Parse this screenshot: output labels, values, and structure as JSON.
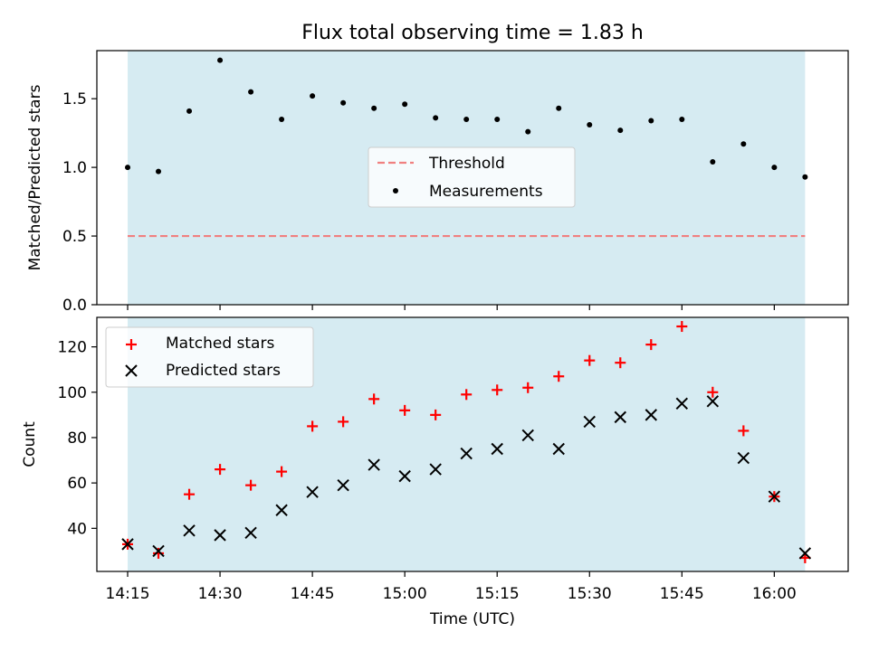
{
  "chart_data": [
    {
      "type": "scatter",
      "title": "Flux total observing time = 1.83 h",
      "xlabel": "",
      "ylabel": "Matched/Predicted stars",
      "ylim": [
        0,
        1.85
      ],
      "yticks": [
        0.0,
        0.5,
        1.0,
        1.5
      ],
      "ytick_labels": [
        "0.0",
        "0.5",
        "1.0",
        "1.5"
      ],
      "grid": false,
      "legend_position": "center",
      "x": [
        "14:15",
        "14:20",
        "14:25",
        "14:30",
        "14:35",
        "14:40",
        "14:45",
        "14:50",
        "14:55",
        "15:00",
        "15:05",
        "15:10",
        "15:15",
        "15:20",
        "15:25",
        "15:30",
        "15:35",
        "15:40",
        "15:45",
        "15:50",
        "15:55",
        "16:00",
        "16:05"
      ],
      "series": [
        {
          "name": "Threshold",
          "style": "dashed-line",
          "color": "#f08080",
          "values": [
            0.5,
            0.5
          ]
        },
        {
          "name": "Measurements",
          "style": "dot",
          "color": "#000000",
          "values": [
            1.0,
            0.97,
            1.41,
            1.78,
            1.55,
            1.35,
            1.52,
            1.47,
            1.43,
            1.46,
            1.36,
            1.35,
            1.35,
            1.26,
            1.43,
            1.31,
            1.27,
            1.34,
            1.35,
            1.04,
            1.17,
            1.0,
            0.93
          ]
        }
      ],
      "shaded_region": {
        "x": [
          "14:15",
          "16:05"
        ],
        "color": "#add8e6"
      }
    },
    {
      "type": "scatter",
      "title": "",
      "xlabel": "Time (UTC)",
      "ylabel": "Count",
      "ylim": [
        21,
        133
      ],
      "yticks": [
        40,
        60,
        80,
        100,
        120
      ],
      "ytick_labels": [
        "40",
        "60",
        "80",
        "100",
        "120"
      ],
      "xlim": [
        "14:10",
        "16:12"
      ],
      "xticks": [
        "14:15",
        "14:30",
        "14:45",
        "15:00",
        "15:15",
        "15:30",
        "15:45",
        "16:00"
      ],
      "grid": false,
      "legend_position": "upper left",
      "x": [
        "14:15",
        "14:20",
        "14:25",
        "14:30",
        "14:35",
        "14:40",
        "14:45",
        "14:50",
        "14:55",
        "15:00",
        "15:05",
        "15:10",
        "15:15",
        "15:20",
        "15:25",
        "15:30",
        "15:35",
        "15:40",
        "15:45",
        "15:50",
        "15:55",
        "16:00",
        "16:05"
      ],
      "series": [
        {
          "name": "Matched stars",
          "marker": "+",
          "color": "#ff0000",
          "values": [
            33,
            29,
            55,
            66,
            59,
            65,
            85,
            87,
            97,
            92,
            90,
            99,
            101,
            102,
            107,
            114,
            113,
            121,
            129,
            100,
            83,
            54,
            27
          ]
        },
        {
          "name": "Predicted stars",
          "marker": "x",
          "color": "#000000",
          "values": [
            33,
            30,
            39,
            37,
            38,
            48,
            56,
            59,
            68,
            63,
            66,
            73,
            75,
            81,
            75,
            87,
            89,
            90,
            95,
            96,
            71,
            54,
            29
          ]
        }
      ],
      "shaded_region": {
        "x": [
          "14:15",
          "16:05"
        ],
        "color": "#add8e6"
      }
    }
  ]
}
